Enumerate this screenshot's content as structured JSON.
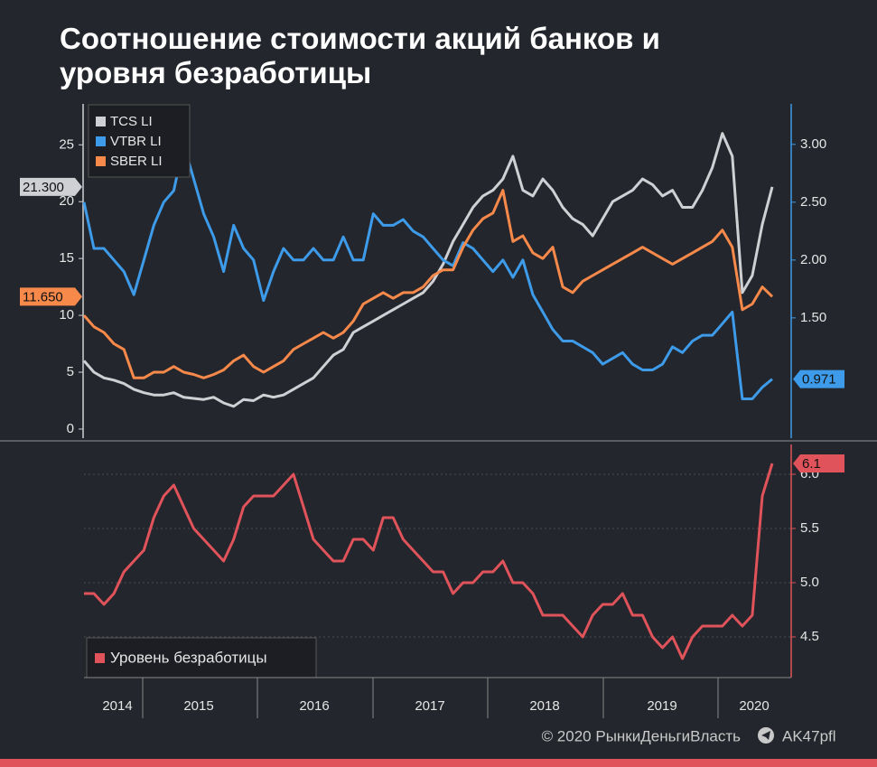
{
  "chart_data": [
    {
      "type": "line",
      "title": "Соотношение стоимости акций банков и уровня безработицы",
      "ylim": [
        -0.8,
        28.6
      ],
      "yticks": [
        0,
        5,
        10,
        15,
        20,
        25
      ],
      "y2lim": [
        0.46,
        3.35
      ],
      "y2ticks": [
        {
          "value": 1.5,
          "label": "1.50"
        },
        {
          "value": 2.0,
          "label": "2.00"
        },
        {
          "value": 2.5,
          "label": "2.50"
        },
        {
          "value": 3.0,
          "label": "3.00"
        }
      ],
      "legend": "top-left",
      "series": [
        {
          "name": "TCS LI",
          "color": "#cfd0d4",
          "axis": "y",
          "end_label": "21.300",
          "values": [
            6.0,
            5.0,
            4.5,
            4.3,
            4.0,
            3.5,
            3.2,
            3.0,
            3.0,
            3.2,
            2.8,
            2.7,
            2.6,
            2.8,
            2.3,
            2.0,
            2.6,
            2.5,
            3.0,
            2.8,
            3.0,
            3.5,
            4.0,
            4.5,
            5.5,
            6.5,
            7.0,
            8.5,
            9.0,
            9.5,
            10.0,
            10.5,
            11.0,
            11.5,
            12.0,
            13.0,
            14.5,
            16.5,
            18.0,
            19.5,
            20.5,
            21.0,
            22.0,
            24.0,
            21.0,
            20.5,
            22.0,
            21.0,
            19.5,
            18.5,
            18.0,
            17.0,
            18.5,
            20.0,
            20.5,
            21.0,
            22.0,
            21.5,
            20.5,
            21.0,
            19.5,
            19.5,
            21.0,
            23.0,
            26.0,
            24.0,
            12.0,
            13.5,
            18.0,
            21.3
          ]
        },
        {
          "name": "VTBR LI",
          "color": "#3d9be9",
          "axis": "y2",
          "end_label": "0.971",
          "values": [
            2.5,
            2.1,
            2.1,
            2.0,
            1.9,
            1.7,
            2.0,
            2.3,
            2.5,
            2.6,
            3.0,
            2.7,
            2.4,
            2.2,
            1.9,
            2.3,
            2.1,
            2.0,
            1.65,
            1.9,
            2.1,
            2.0,
            2.0,
            2.1,
            2.0,
            2.0,
            2.2,
            2.0,
            2.0,
            2.4,
            2.3,
            2.3,
            2.35,
            2.25,
            2.2,
            2.1,
            2.0,
            1.95,
            2.15,
            2.1,
            2.0,
            1.9,
            2.0,
            1.85,
            2.0,
            1.7,
            1.55,
            1.4,
            1.3,
            1.3,
            1.25,
            1.2,
            1.1,
            1.15,
            1.2,
            1.1,
            1.05,
            1.05,
            1.1,
            1.25,
            1.2,
            1.3,
            1.35,
            1.35,
            1.45,
            1.55,
            0.8,
            0.8,
            0.9,
            0.971
          ]
        },
        {
          "name": "SBER LI",
          "color": "#f7894a",
          "axis": "y",
          "end_label": "11.650",
          "values": [
            10.0,
            9.0,
            8.5,
            7.5,
            7.0,
            4.5,
            4.5,
            5.0,
            5.0,
            5.5,
            5.0,
            4.8,
            4.5,
            4.8,
            5.2,
            6.0,
            6.5,
            5.5,
            5.0,
            5.5,
            6.0,
            7.0,
            7.5,
            8.0,
            8.5,
            8.0,
            8.5,
            9.5,
            11.0,
            11.5,
            12.0,
            11.5,
            12.0,
            12.0,
            12.5,
            13.5,
            14.0,
            14.0,
            16.0,
            17.5,
            18.5,
            19.0,
            21.0,
            16.5,
            17.0,
            15.5,
            15.0,
            16.0,
            12.5,
            12.0,
            13.0,
            13.5,
            14.0,
            14.5,
            15.0,
            15.5,
            16.0,
            15.5,
            15.0,
            14.5,
            15.0,
            15.5,
            16.0,
            16.5,
            17.5,
            16.0,
            10.5,
            11.0,
            12.5,
            11.65
          ]
        }
      ]
    },
    {
      "type": "line",
      "ylim": [
        4.125,
        6.275
      ],
      "y_axis_side": "right",
      "yticks": [
        4.5,
        {
          "value": 5.0,
          "label": "5.0"
        },
        5.5,
        {
          "value": 6.0,
          "label": "6.0"
        }
      ],
      "grid": true,
      "legend": "bottom-left",
      "x_labels": [
        "2014",
        "2015",
        "2016",
        "2017",
        "2018",
        "2019",
        "2020"
      ],
      "series": [
        {
          "name": "Уровень безработицы",
          "color": "#e0535a",
          "values": [
            4.9,
            4.9,
            4.8,
            4.9,
            5.1,
            5.2,
            5.3,
            5.6,
            5.8,
            5.9,
            5.7,
            5.5,
            5.4,
            5.3,
            5.2,
            5.4,
            5.7,
            5.8,
            5.8,
            5.8,
            5.9,
            6.0,
            5.7,
            5.4,
            5.3,
            5.2,
            5.2,
            5.4,
            5.4,
            5.3,
            5.6,
            5.6,
            5.4,
            5.3,
            5.2,
            5.1,
            5.1,
            4.9,
            5.0,
            5.0,
            5.1,
            5.1,
            5.2,
            5.0,
            5.0,
            4.9,
            4.7,
            4.7,
            4.7,
            4.6,
            4.5,
            4.7,
            4.8,
            4.8,
            4.9,
            4.7,
            4.7,
            4.5,
            4.4,
            4.5,
            4.3,
            4.5,
            4.6,
            4.6,
            4.6,
            4.7,
            4.6,
            4.7,
            5.8,
            6.1
          ]
        }
      ]
    }
  ],
  "footer": {
    "copyright": "© 2020  РынкиДеньгиВласть",
    "telegram": "AK47pfl"
  }
}
